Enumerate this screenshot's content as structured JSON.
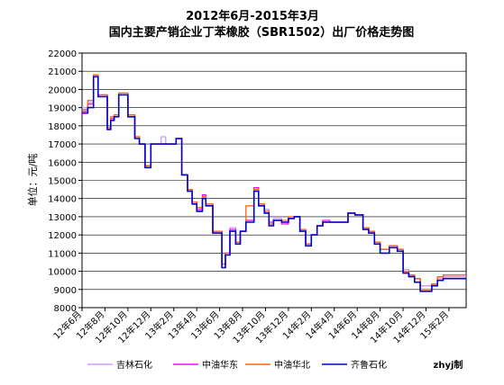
{
  "chart_data": {
    "type": "line",
    "title": "2012年6月-2015年3月",
    "subtitle": "国内主要产销企业丁苯橡胶（SBR1502）出厂价格走势图",
    "ylabel": "单位：元/吨",
    "xlabel": "",
    "ylim": [
      8000,
      22000
    ],
    "yticks": [
      8000,
      9000,
      10000,
      11000,
      12000,
      13000,
      14000,
      15000,
      16000,
      17000,
      18000,
      19000,
      20000,
      21000,
      22000
    ],
    "x_tick_labels": [
      "12年6月",
      "12年8月",
      "12年10月",
      "12年12月",
      "13年2月",
      "13年4月",
      "13年6月",
      "13年8月",
      "13年10月",
      "13年12月",
      "14年2月",
      "14年4月",
      "14年6月",
      "14年8月",
      "14年10月",
      "14年12月",
      "15年2月"
    ],
    "x_range_months": [
      0,
      33.5
    ],
    "grid": true,
    "legend_position": "bottom",
    "source": "zhyj制",
    "colors": {
      "吉林石化": "#cc99ff",
      "中油华东": "#ff00ff",
      "中油华北": "#ff6600",
      "齐鲁石化": "#0000cc"
    },
    "series": [
      {
        "name": "吉林石化",
        "x": [
          0,
          0.5,
          1.0,
          1.4,
          2.2,
          2.5,
          2.8,
          3.2,
          3.6,
          4.0,
          4.6,
          5.0,
          5.5,
          6.0,
          6.5,
          6.9,
          7.3,
          7.8,
          8.2,
          8.7,
          9.2,
          9.6,
          10.0,
          10.5,
          10.8,
          11.4,
          12.2,
          12.5,
          12.9,
          13.4,
          13.8,
          14.3,
          15.0,
          15.4,
          15.9,
          16.3,
          16.7,
          17.4,
          18.0,
          18.5,
          19.0,
          19.5,
          20.0,
          20.5,
          21.0,
          21.6,
          22.0,
          22.5,
          23.2,
          23.8,
          24.5,
          25.0,
          25.5,
          26.0,
          26.8,
          27.5,
          28.0,
          28.5,
          29.0,
          29.5,
          30.5,
          31.0,
          31.5,
          32.0,
          32.5,
          33.0,
          33.5
        ],
        "y": [
          19000,
          19300,
          20700,
          19700,
          17900,
          18300,
          18600,
          19700,
          19700,
          18600,
          17400,
          17000,
          15800,
          17000,
          17000,
          17400,
          17000,
          17000,
          17300,
          15300,
          14500,
          13800,
          13500,
          14100,
          13700,
          12200,
          10400,
          11000,
          12400,
          11600,
          12200,
          12800,
          14500,
          13700,
          13400,
          12600,
          12900,
          12700,
          12900,
          13000,
          12300,
          11500,
          12000,
          12500,
          12700,
          12700,
          12700,
          12700,
          13200,
          13100,
          12400,
          12200,
          11600,
          11200,
          11400,
          11200,
          10100,
          9700,
          9600,
          9200,
          9300,
          9600,
          9700,
          9700,
          9700,
          9700,
          9700
        ]
      },
      {
        "name": "中油华东",
        "x": [
          0,
          0.5,
          1.0,
          1.4,
          2.2,
          2.5,
          2.8,
          3.2,
          3.6,
          4.0,
          4.6,
          5.0,
          5.5,
          6.0,
          6.5,
          6.9,
          7.3,
          7.8,
          8.2,
          8.7,
          9.2,
          9.6,
          10.0,
          10.5,
          10.8,
          11.4,
          12.2,
          12.5,
          12.9,
          13.4,
          13.8,
          14.3,
          15.0,
          15.4,
          15.9,
          16.3,
          16.7,
          17.4,
          18.0,
          18.5,
          19.0,
          19.5,
          20.0,
          20.5,
          21.0,
          21.6,
          22.0,
          22.5,
          23.2,
          23.8,
          24.5,
          25.0,
          25.5,
          26.0,
          26.8,
          27.5,
          28.0,
          28.5,
          29.0,
          29.5,
          30.5,
          31.0,
          31.5,
          32.0,
          32.5,
          33.0,
          33.5
        ],
        "y": [
          18800,
          19200,
          20800,
          19700,
          17900,
          18400,
          18600,
          19800,
          19800,
          18600,
          17400,
          17000,
          15800,
          17000,
          17000,
          17000,
          17000,
          17000,
          17300,
          15300,
          14500,
          13800,
          13400,
          14200,
          13700,
          12200,
          10400,
          11000,
          12300,
          11600,
          12200,
          12800,
          14600,
          13700,
          13300,
          12700,
          12800,
          12600,
          12900,
          13000,
          12300,
          11500,
          12000,
          12500,
          12800,
          12700,
          12700,
          12700,
          13200,
          13100,
          12400,
          12200,
          11600,
          11200,
          11400,
          11200,
          10000,
          9800,
          9600,
          9000,
          9300,
          9700,
          9800,
          9800,
          9800,
          9800,
          9800
        ]
      },
      {
        "name": "中油华北",
        "x": [
          0,
          0.5,
          1.0,
          1.4,
          2.2,
          2.5,
          2.8,
          3.2,
          3.6,
          4.0,
          4.6,
          5.0,
          5.5,
          6.0,
          6.5,
          6.9,
          7.3,
          7.8,
          8.2,
          8.7,
          9.2,
          9.6,
          10.0,
          10.5,
          10.8,
          11.4,
          12.2,
          12.5,
          12.9,
          13.4,
          13.8,
          14.3,
          15.0,
          15.4,
          15.9,
          16.3,
          16.7,
          17.4,
          18.0,
          18.5,
          19.0,
          19.5,
          20.0,
          20.5,
          21.0,
          21.6,
          22.0,
          22.5,
          23.2,
          23.8,
          24.5,
          25.0,
          25.5,
          26.0,
          26.8,
          27.5,
          28.0,
          28.5,
          29.0,
          29.5,
          30.5,
          31.0,
          31.5,
          32.0,
          32.5,
          33.0,
          33.5
        ],
        "y": [
          18900,
          19400,
          20800,
          19700,
          17900,
          18500,
          18600,
          19800,
          19800,
          18600,
          17400,
          17000,
          15800,
          17000,
          17000,
          17000,
          17000,
          17000,
          17300,
          15300,
          14500,
          13800,
          13500,
          14100,
          13700,
          12200,
          10400,
          11000,
          12200,
          11600,
          12200,
          13600,
          14500,
          13700,
          13300,
          12600,
          12800,
          12800,
          13000,
          13000,
          12300,
          11500,
          12000,
          12500,
          12700,
          12700,
          12700,
          12700,
          13200,
          13100,
          12400,
          12200,
          11600,
          11200,
          11400,
          11200,
          10000,
          9800,
          9600,
          9000,
          9300,
          9700,
          9800,
          9800,
          9800,
          9800,
          9800
        ]
      },
      {
        "name": "齐鲁石化",
        "x": [
          0,
          0.5,
          1.0,
          1.4,
          2.2,
          2.5,
          2.8,
          3.2,
          3.6,
          4.0,
          4.6,
          5.0,
          5.5,
          6.0,
          6.5,
          6.9,
          7.3,
          7.8,
          8.2,
          8.7,
          9.2,
          9.6,
          10.0,
          10.5,
          10.8,
          11.4,
          12.2,
          12.5,
          12.9,
          13.4,
          13.8,
          14.3,
          15.0,
          15.4,
          15.9,
          16.3,
          16.7,
          17.4,
          18.0,
          18.5,
          19.0,
          19.5,
          20.0,
          20.5,
          21.0,
          21.6,
          22.0,
          22.5,
          23.2,
          23.8,
          24.5,
          25.0,
          25.5,
          26.0,
          26.8,
          27.5,
          28.0,
          28.5,
          29.0,
          29.5,
          30.5,
          31.0,
          31.5,
          32.0,
          32.5,
          33.0,
          33.5
        ],
        "y": [
          18700,
          19000,
          20700,
          19600,
          17800,
          18300,
          18500,
          19700,
          19700,
          18500,
          17300,
          17000,
          15700,
          17000,
          17000,
          17000,
          17000,
          17000,
          17300,
          15300,
          14400,
          13700,
          13300,
          14000,
          13600,
          12100,
          10200,
          10900,
          12200,
          11500,
          12200,
          12700,
          14400,
          13600,
          13200,
          12500,
          12800,
          12700,
          12900,
          13000,
          12200,
          11400,
          12000,
          12500,
          12700,
          12700,
          12700,
          12700,
          13200,
          13100,
          12300,
          12100,
          11500,
          11000,
          11300,
          11100,
          9900,
          9700,
          9400,
          8900,
          9200,
          9500,
          9600,
          9600,
          9600,
          9600,
          9600
        ]
      }
    ]
  }
}
